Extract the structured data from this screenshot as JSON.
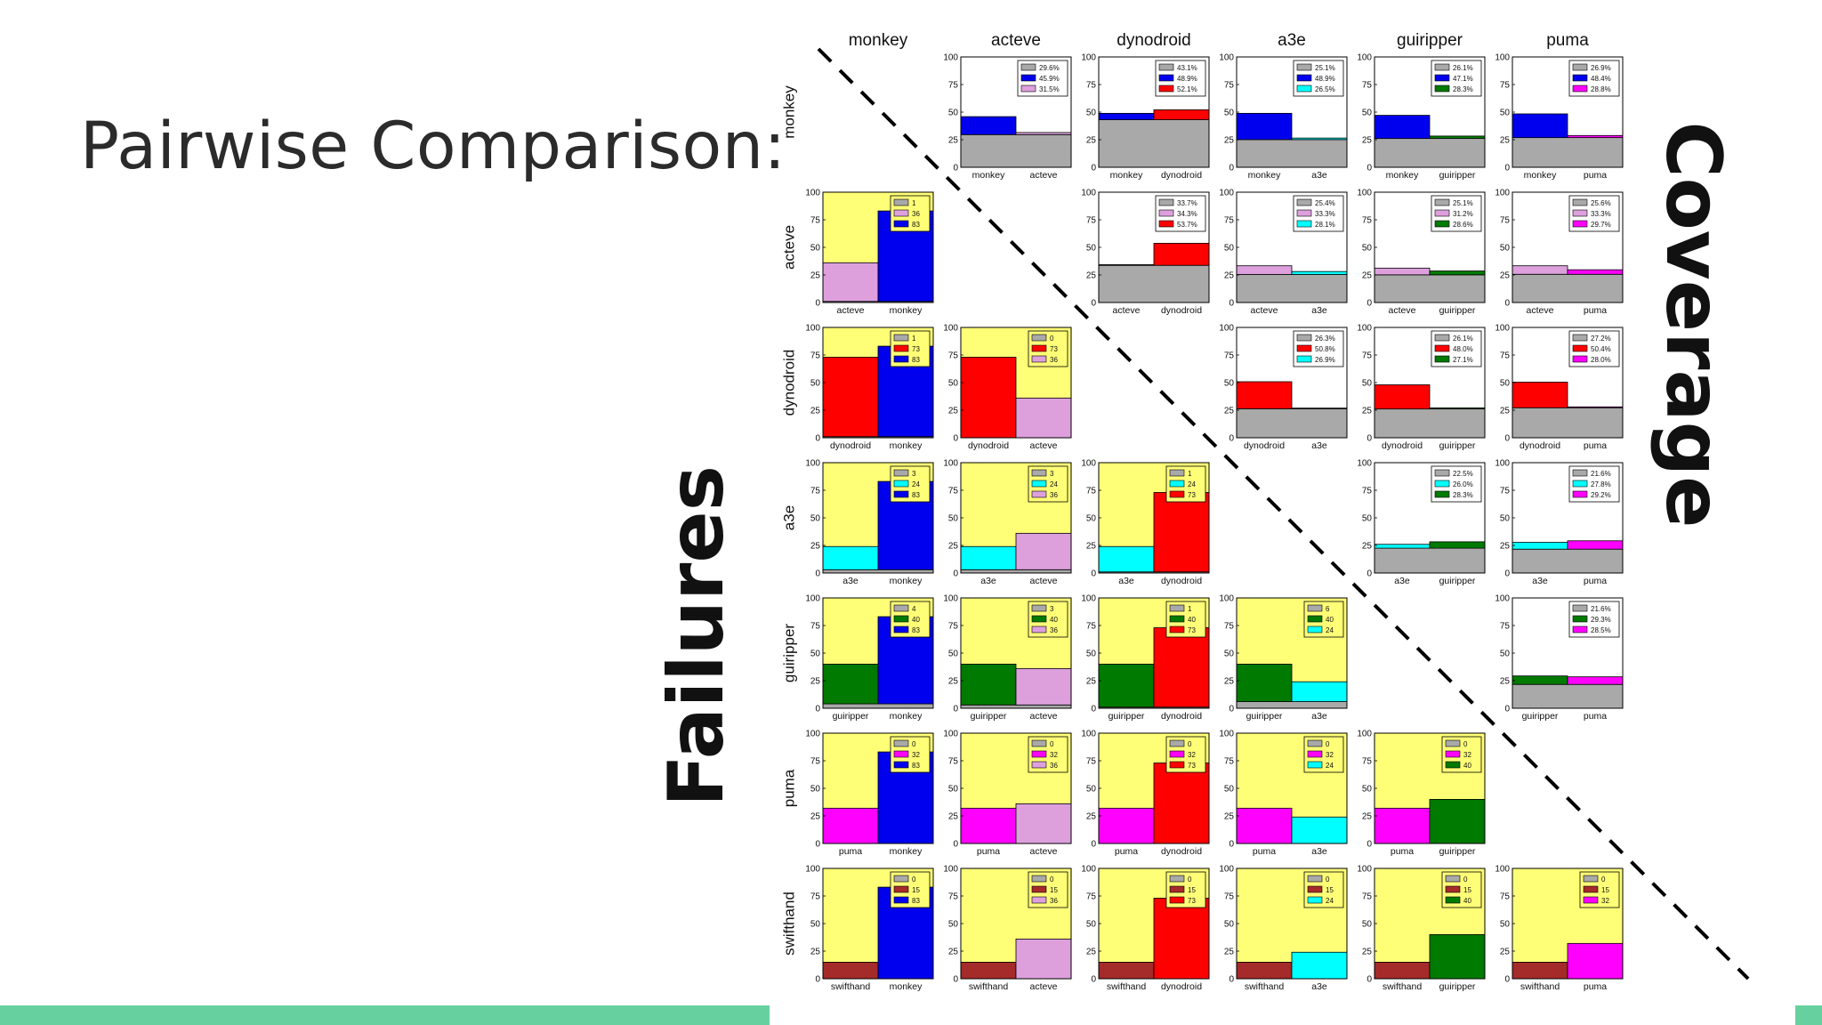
{
  "slide": {
    "title": "Pairwise Comparison:",
    "failures_label": "Failures",
    "coverage_label": "Coverage"
  },
  "colors": {
    "accent_bar": "#66d19e",
    "base_gray": "#a9a9a9",
    "failure_background": "#ffff77",
    "tools": {
      "monkey": "#0000ee",
      "acteve": "#dda0dd",
      "dynodroid": "#ff0000",
      "a3e": "#00ffff",
      "guiripper": "#007a00",
      "puma": "#ff00ff",
      "swifthand": "#a52a2a"
    }
  },
  "chart_data": {
    "type": "bar",
    "ylim": [
      0,
      100
    ],
    "yticks": [
      "0",
      "25",
      "50",
      "75",
      "100"
    ],
    "column_tools": [
      "monkey",
      "acteve",
      "dynodroid",
      "a3e",
      "guiripper",
      "puma"
    ],
    "row_tools": [
      "monkey",
      "acteve",
      "dynodroid",
      "a3e",
      "guiripper",
      "puma",
      "swifthand"
    ],
    "coverage": [
      {
        "a": "monkey",
        "b": "acteve",
        "common": 29.6,
        "a_value": 45.9,
        "b_value": 31.5,
        "legend": [
          "29.6%",
          "45.9%",
          "31.5%"
        ]
      },
      {
        "a": "monkey",
        "b": "dynodroid",
        "common": 43.1,
        "a_value": 48.9,
        "b_value": 52.1,
        "legend": [
          "43.1%",
          "48.9%",
          "52.1%"
        ]
      },
      {
        "a": "monkey",
        "b": "a3e",
        "common": 25.1,
        "a_value": 48.9,
        "b_value": 26.5,
        "legend": [
          "25.1%",
          "48.9%",
          "26.5%"
        ]
      },
      {
        "a": "monkey",
        "b": "guiripper",
        "common": 26.1,
        "a_value": 47.1,
        "b_value": 28.3,
        "legend": [
          "26.1%",
          "47.1%",
          "28.3%"
        ]
      },
      {
        "a": "monkey",
        "b": "puma",
        "common": 26.9,
        "a_value": 48.4,
        "b_value": 28.8,
        "legend": [
          "26.9%",
          "48.4%",
          "28.8%"
        ]
      },
      {
        "a": "acteve",
        "b": "dynodroid",
        "common": 33.7,
        "a_value": 34.3,
        "b_value": 53.7,
        "legend": [
          "33.7%",
          "34.3%",
          "53.7%"
        ]
      },
      {
        "a": "acteve",
        "b": "a3e",
        "common": 25.4,
        "a_value": 33.3,
        "b_value": 28.1,
        "legend": [
          "25.4%",
          "33.3%",
          "28.1%"
        ]
      },
      {
        "a": "acteve",
        "b": "guiripper",
        "common": 25.1,
        "a_value": 31.2,
        "b_value": 28.6,
        "legend": [
          "25.1%",
          "31.2%",
          "28.6%"
        ]
      },
      {
        "a": "acteve",
        "b": "puma",
        "common": 25.6,
        "a_value": 33.3,
        "b_value": 29.7,
        "legend": [
          "25.6%",
          "33.3%",
          "29.7%"
        ]
      },
      {
        "a": "dynodroid",
        "b": "a3e",
        "common": 26.3,
        "a_value": 50.8,
        "b_value": 26.9,
        "legend": [
          "26.3%",
          "50.8%",
          "26.9%"
        ]
      },
      {
        "a": "dynodroid",
        "b": "guiripper",
        "common": 26.1,
        "a_value": 48.0,
        "b_value": 27.1,
        "legend": [
          "26.1%",
          "48.0%",
          "27.1%"
        ]
      },
      {
        "a": "dynodroid",
        "b": "puma",
        "common": 27.2,
        "a_value": 50.4,
        "b_value": 28.0,
        "legend": [
          "27.2%",
          "50.4%",
          "28.0%"
        ]
      },
      {
        "a": "a3e",
        "b": "guiripper",
        "common": 22.5,
        "a_value": 26.0,
        "b_value": 28.3,
        "legend": [
          "22.5%",
          "26.0%",
          "28.3%"
        ]
      },
      {
        "a": "a3e",
        "b": "puma",
        "common": 21.6,
        "a_value": 27.8,
        "b_value": 29.2,
        "legend": [
          "21.6%",
          "27.8%",
          "29.2%"
        ]
      },
      {
        "a": "guiripper",
        "b": "puma",
        "common": 21.6,
        "a_value": 29.3,
        "b_value": 28.5,
        "legend": [
          "21.6%",
          "29.3%",
          "28.5%"
        ]
      }
    ],
    "failures": [
      {
        "a": "acteve",
        "b": "monkey",
        "common": 1,
        "a_value": 36,
        "b_value": 83
      },
      {
        "a": "dynodroid",
        "b": "monkey",
        "common": 1,
        "a_value": 73,
        "b_value": 83
      },
      {
        "a": "dynodroid",
        "b": "acteve",
        "common": 0,
        "a_value": 73,
        "b_value": 36
      },
      {
        "a": "a3e",
        "b": "monkey",
        "common": 3,
        "a_value": 24,
        "b_value": 83
      },
      {
        "a": "a3e",
        "b": "acteve",
        "common": 3,
        "a_value": 24,
        "b_value": 36
      },
      {
        "a": "a3e",
        "b": "dynodroid",
        "common": 1,
        "a_value": 24,
        "b_value": 73
      },
      {
        "a": "guiripper",
        "b": "monkey",
        "common": 4,
        "a_value": 40,
        "b_value": 83
      },
      {
        "a": "guiripper",
        "b": "acteve",
        "common": 3,
        "a_value": 40,
        "b_value": 36
      },
      {
        "a": "guiripper",
        "b": "dynodroid",
        "common": 1,
        "a_value": 40,
        "b_value": 73
      },
      {
        "a": "guiripper",
        "b": "a3e",
        "common": 6,
        "a_value": 40,
        "b_value": 24
      },
      {
        "a": "puma",
        "b": "monkey",
        "common": 0,
        "a_value": 32,
        "b_value": 83
      },
      {
        "a": "puma",
        "b": "acteve",
        "common": 0,
        "a_value": 32,
        "b_value": 36
      },
      {
        "a": "puma",
        "b": "dynodroid",
        "common": 0,
        "a_value": 32,
        "b_value": 73
      },
      {
        "a": "puma",
        "b": "a3e",
        "common": 0,
        "a_value": 32,
        "b_value": 24
      },
      {
        "a": "puma",
        "b": "guiripper",
        "common": 0,
        "a_value": 32,
        "b_value": 40
      },
      {
        "a": "swifthand",
        "b": "monkey",
        "common": 0,
        "a_value": 15,
        "b_value": 83
      },
      {
        "a": "swifthand",
        "b": "acteve",
        "common": 0,
        "a_value": 15,
        "b_value": 36
      },
      {
        "a": "swifthand",
        "b": "dynodroid",
        "common": 0,
        "a_value": 15,
        "b_value": 73
      },
      {
        "a": "swifthand",
        "b": "a3e",
        "common": 0,
        "a_value": 15,
        "b_value": 24
      },
      {
        "a": "swifthand",
        "b": "guiripper",
        "common": 0,
        "a_value": 15,
        "b_value": 40
      },
      {
        "a": "swifthand",
        "b": "puma",
        "common": 0,
        "a_value": 15,
        "b_value": 32
      }
    ]
  }
}
